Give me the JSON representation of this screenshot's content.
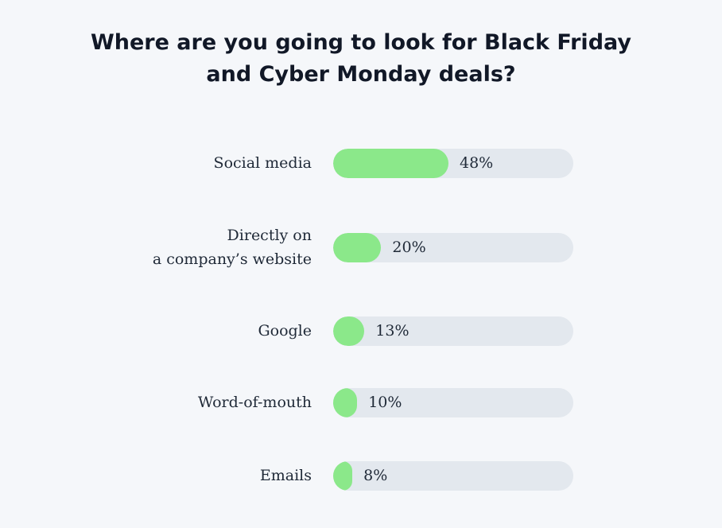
{
  "chart_data": {
    "type": "bar",
    "orientation": "horizontal",
    "title_lines": [
      "Where are you going to look for Black Friday",
      "and Cyber Monday deals?"
    ],
    "unit": "%",
    "xlim": [
      0,
      100
    ],
    "grid": false,
    "categories": [
      [
        "Social media"
      ],
      [
        "Directly on",
        "a company’s website"
      ],
      [
        "Google"
      ],
      [
        "Word-of-mouth"
      ],
      [
        "Emails"
      ]
    ],
    "values": [
      48,
      20,
      13,
      10,
      8
    ],
    "value_labels": [
      "48%",
      "20%",
      "13%",
      "10%",
      "8%"
    ]
  },
  "colors": {
    "background": "#f5f7fa",
    "bar_fill": "#8be88a",
    "track": "#e3e8ee",
    "text": "#1f2937"
  }
}
